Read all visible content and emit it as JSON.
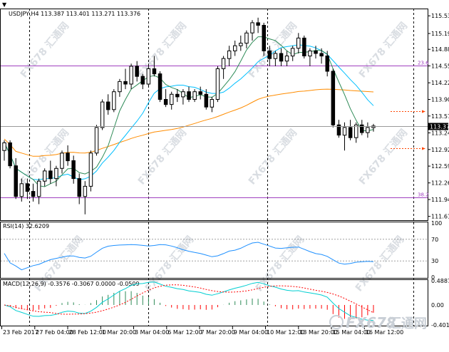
{
  "header": {
    "main_title": "USDJPY,H4  113.387 113.401 113.271 113.376",
    "rsi_title": "RSI(14) 32.6209",
    "macd_title": "MACD(12,26,9) -0.3576 -0.3067 0.0000 -0.0509"
  },
  "watermark": {
    "text": "FX678 汇通网",
    "brand_fx": "FX678",
    "brand_cn": "汇通网"
  },
  "colors": {
    "candle": "#000000",
    "grid": "#000000",
    "fib_line": "#a040c0",
    "ma_fast": "#2e8b57",
    "ma_mid": "#00bfff",
    "ma_slow": "#ff8c00",
    "ma_slow2": "#4f8f7f",
    "rsi_line": "#1e90ff",
    "macd_main": "#00ced1",
    "macd_signal": "#ff0000",
    "hist_pos": "#2e8b57",
    "hist_neg": "#ff0000",
    "target_line": "#ff4500"
  },
  "price_axis": {
    "ticks": [
      "115.535",
      "115.190",
      "114.880",
      "114.555",
      "114.225",
      "113.900",
      "113.575",
      "113.245",
      "112.920",
      "112.595",
      "112.265",
      "111.940",
      "111.610"
    ],
    "current_price": "113.376"
  },
  "fib_levels": [
    {
      "label": "23.6",
      "price": 114.56
    },
    {
      "label": "38.2",
      "price": 111.98
    }
  ],
  "target_levels": [
    {
      "price": 113.67
    },
    {
      "price": 112.95
    }
  ],
  "rsi_axis": {
    "ticks": [
      "100",
      "70",
      "30",
      "0"
    ],
    "levels": [
      100,
      70,
      30,
      0
    ]
  },
  "macd_axis": {
    "ticks": [
      "0.4887",
      "0.00",
      "-0.4016"
    ],
    "values": [
      0.4887,
      0.0,
      -0.4016
    ]
  },
  "time_axis": {
    "labels": [
      "23 Feb 2017",
      "27 Feb 04:00",
      "28 Feb 12:00",
      "1 Mar 20:00",
      "3 Mar 04:00",
      "6 Mar 12:00",
      "7 Mar 20:00",
      "9 Mar 04:00",
      "10 Mar 12:00",
      "13 Mar 20:00",
      "15 Mar 04:00",
      "16 Mar 12:00"
    ]
  },
  "chart_data": {
    "type": "candlestick",
    "symbol": "USDJPY",
    "timeframe": "H4",
    "ohlc_latest": {
      "open": 113.387,
      "high": 113.401,
      "low": 113.271,
      "close": 113.376
    },
    "ylim": [
      111.55,
      115.65
    ],
    "candles": [
      [
        112.9,
        113.1,
        112.7,
        113.05
      ],
      [
        113.05,
        113.1,
        112.55,
        112.6
      ],
      [
        112.6,
        112.75,
        111.95,
        112.0
      ],
      [
        112.0,
        112.35,
        111.9,
        112.25
      ],
      [
        112.25,
        112.35,
        111.95,
        112.1
      ],
      [
        112.1,
        112.25,
        111.9,
        112.0
      ],
      [
        112.0,
        112.35,
        111.85,
        112.3
      ],
      [
        112.3,
        112.55,
        112.2,
        112.5
      ],
      [
        112.5,
        112.7,
        112.25,
        112.35
      ],
      [
        112.35,
        112.6,
        112.2,
        112.55
      ],
      [
        112.55,
        112.9,
        112.45,
        112.85
      ],
      [
        112.85,
        113.0,
        112.6,
        112.7
      ],
      [
        112.7,
        112.8,
        112.25,
        112.35
      ],
      [
        112.35,
        112.45,
        111.85,
        112.0
      ],
      [
        112.0,
        112.3,
        111.65,
        112.2
      ],
      [
        112.2,
        112.9,
        112.1,
        112.85
      ],
      [
        112.85,
        113.4,
        112.8,
        113.35
      ],
      [
        113.35,
        113.9,
        113.3,
        113.85
      ],
      [
        113.85,
        114.0,
        113.6,
        113.7
      ],
      [
        113.7,
        114.1,
        113.65,
        114.05
      ],
      [
        114.05,
        114.3,
        113.95,
        114.25
      ],
      [
        114.25,
        114.5,
        114.1,
        114.2
      ],
      [
        114.2,
        114.6,
        114.1,
        114.55
      ],
      [
        114.55,
        114.65,
        114.25,
        114.35
      ],
      [
        114.35,
        114.4,
        114.1,
        114.2
      ],
      [
        114.2,
        114.6,
        114.15,
        114.5
      ],
      [
        114.5,
        114.75,
        114.35,
        114.4
      ],
      [
        114.4,
        114.45,
        113.85,
        113.9
      ],
      [
        113.9,
        114.1,
        113.75,
        113.8
      ],
      [
        113.8,
        114.05,
        113.7,
        114.0
      ],
      [
        114.0,
        114.1,
        113.85,
        113.95
      ],
      [
        113.95,
        114.1,
        113.8,
        114.05
      ],
      [
        114.05,
        114.15,
        113.85,
        113.9
      ],
      [
        113.9,
        114.1,
        113.85,
        114.05
      ],
      [
        114.05,
        114.15,
        113.9,
        114.0
      ],
      [
        114.0,
        114.1,
        113.7,
        113.75
      ],
      [
        113.75,
        113.95,
        113.65,
        113.9
      ],
      [
        113.9,
        114.55,
        113.85,
        114.5
      ],
      [
        114.5,
        114.75,
        114.3,
        114.7
      ],
      [
        114.7,
        114.95,
        114.55,
        114.85
      ],
      [
        114.85,
        115.05,
        114.75,
        114.95
      ],
      [
        114.95,
        115.15,
        114.85,
        115.0
      ],
      [
        115.0,
        115.25,
        114.9,
        115.2
      ],
      [
        115.2,
        115.45,
        115.05,
        115.4
      ],
      [
        115.4,
        115.5,
        115.2,
        115.35
      ],
      [
        115.35,
        115.4,
        114.75,
        114.85
      ],
      [
        114.85,
        114.95,
        114.55,
        114.7
      ],
      [
        114.7,
        114.85,
        114.55,
        114.8
      ],
      [
        114.8,
        114.9,
        114.55,
        114.65
      ],
      [
        114.65,
        114.85,
        114.55,
        114.75
      ],
      [
        114.75,
        114.95,
        114.65,
        114.9
      ],
      [
        114.9,
        115.2,
        114.8,
        115.1
      ],
      [
        115.1,
        115.15,
        114.7,
        114.75
      ],
      [
        114.75,
        114.9,
        114.55,
        114.85
      ],
      [
        114.85,
        114.95,
        114.7,
        114.8
      ],
      [
        114.8,
        114.9,
        114.6,
        114.75
      ],
      [
        114.75,
        114.85,
        114.35,
        114.45
      ],
      [
        114.45,
        114.5,
        113.35,
        113.4
      ],
      [
        113.4,
        113.5,
        113.15,
        113.2
      ],
      [
        113.2,
        113.45,
        112.9,
        113.35
      ],
      [
        113.35,
        113.5,
        113.1,
        113.15
      ],
      [
        113.15,
        113.45,
        113.05,
        113.4
      ],
      [
        113.4,
        113.5,
        113.2,
        113.25
      ],
      [
        113.25,
        113.45,
        113.15,
        113.35
      ],
      [
        113.35,
        113.42,
        113.27,
        113.38
      ]
    ]
  }
}
